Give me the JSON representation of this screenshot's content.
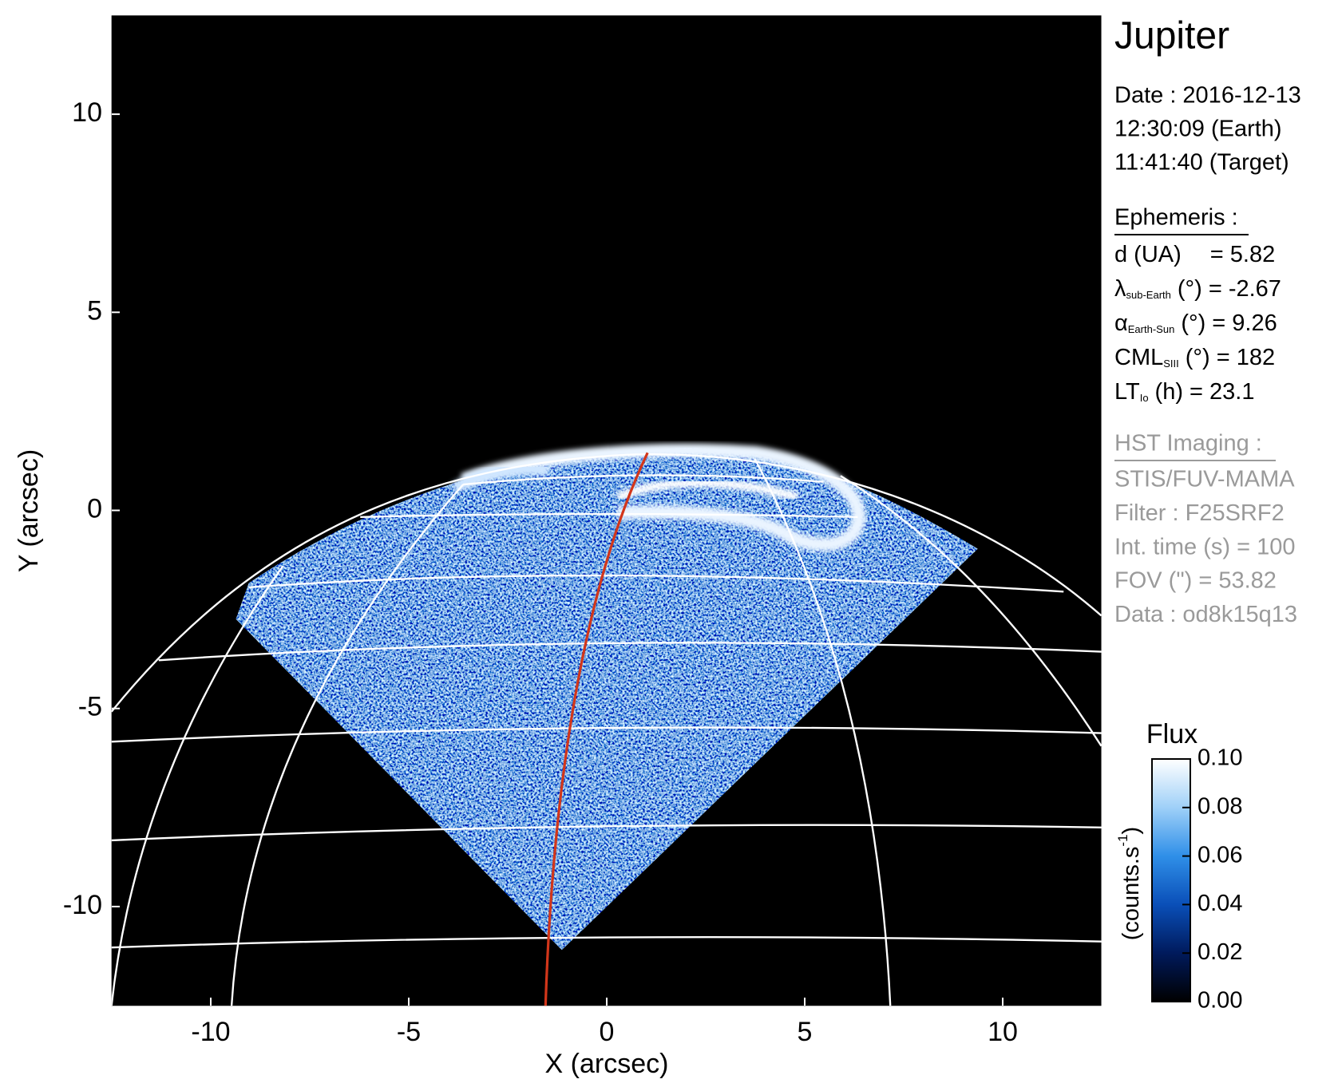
{
  "chart_data": {
    "type": "image",
    "xlabel": "X (arcsec)",
    "ylabel": "Y (arcsec)",
    "xlim": [
      -12.5,
      12.5
    ],
    "ylim": [
      -12.5,
      12.5
    ],
    "xticks": [
      -10,
      -5,
      0,
      5,
      10
    ],
    "yticks": [
      -10,
      -5,
      0,
      5,
      10
    ],
    "colorbar": {
      "title": "Flux",
      "label": {
        "text": "(counts.s",
        "sup": "-1",
        "end": ")"
      },
      "clim": [
        0,
        0.1
      ],
      "ticks": [
        {
          "value": 0,
          "label": "0.00"
        },
        {
          "value": 0.02,
          "label": "0.02"
        },
        {
          "value": 0.04,
          "label": "0.04"
        },
        {
          "value": 0.06,
          "label": "0.06"
        },
        {
          "value": 0.08,
          "label": "0.08"
        },
        {
          "value": 0.1,
          "label": "0.10"
        }
      ],
      "colors": [
        "#000000",
        "#001a5c",
        "#0a4fb8",
        "#2f8fe8",
        "#9fd0f8",
        "#ffffff"
      ]
    }
  },
  "info": {
    "title": "Jupiter",
    "date": [
      "Date : 2016-12-13",
      "12:30:09 (Earth)",
      "11:41:40 (Target)"
    ],
    "ephemeris": {
      "heading": "Ephemeris :",
      "rows": [
        {
          "main": "d (UA)",
          "rest": "= 5.82"
        },
        {
          "main": "λ",
          "sub": "sub-Earth",
          "rest": "(°) = -2.67"
        },
        {
          "main": "α",
          "sub": "Earth-Sun",
          "rest": "(°) = 9.26"
        },
        {
          "main": "CML",
          "sub": "SIII",
          "rest": "(°) = 182"
        },
        {
          "main": "LT",
          "sub": "Io",
          "rest": "(h) = 23.1"
        }
      ]
    },
    "imaging": {
      "heading": "HST Imaging :",
      "rows": [
        "STIS/FUV-MAMA",
        "Filter : F25SRF2",
        "Int. time (s) = 100",
        "FOV (\") = 53.82",
        "Data : od8k15q13"
      ]
    }
  }
}
